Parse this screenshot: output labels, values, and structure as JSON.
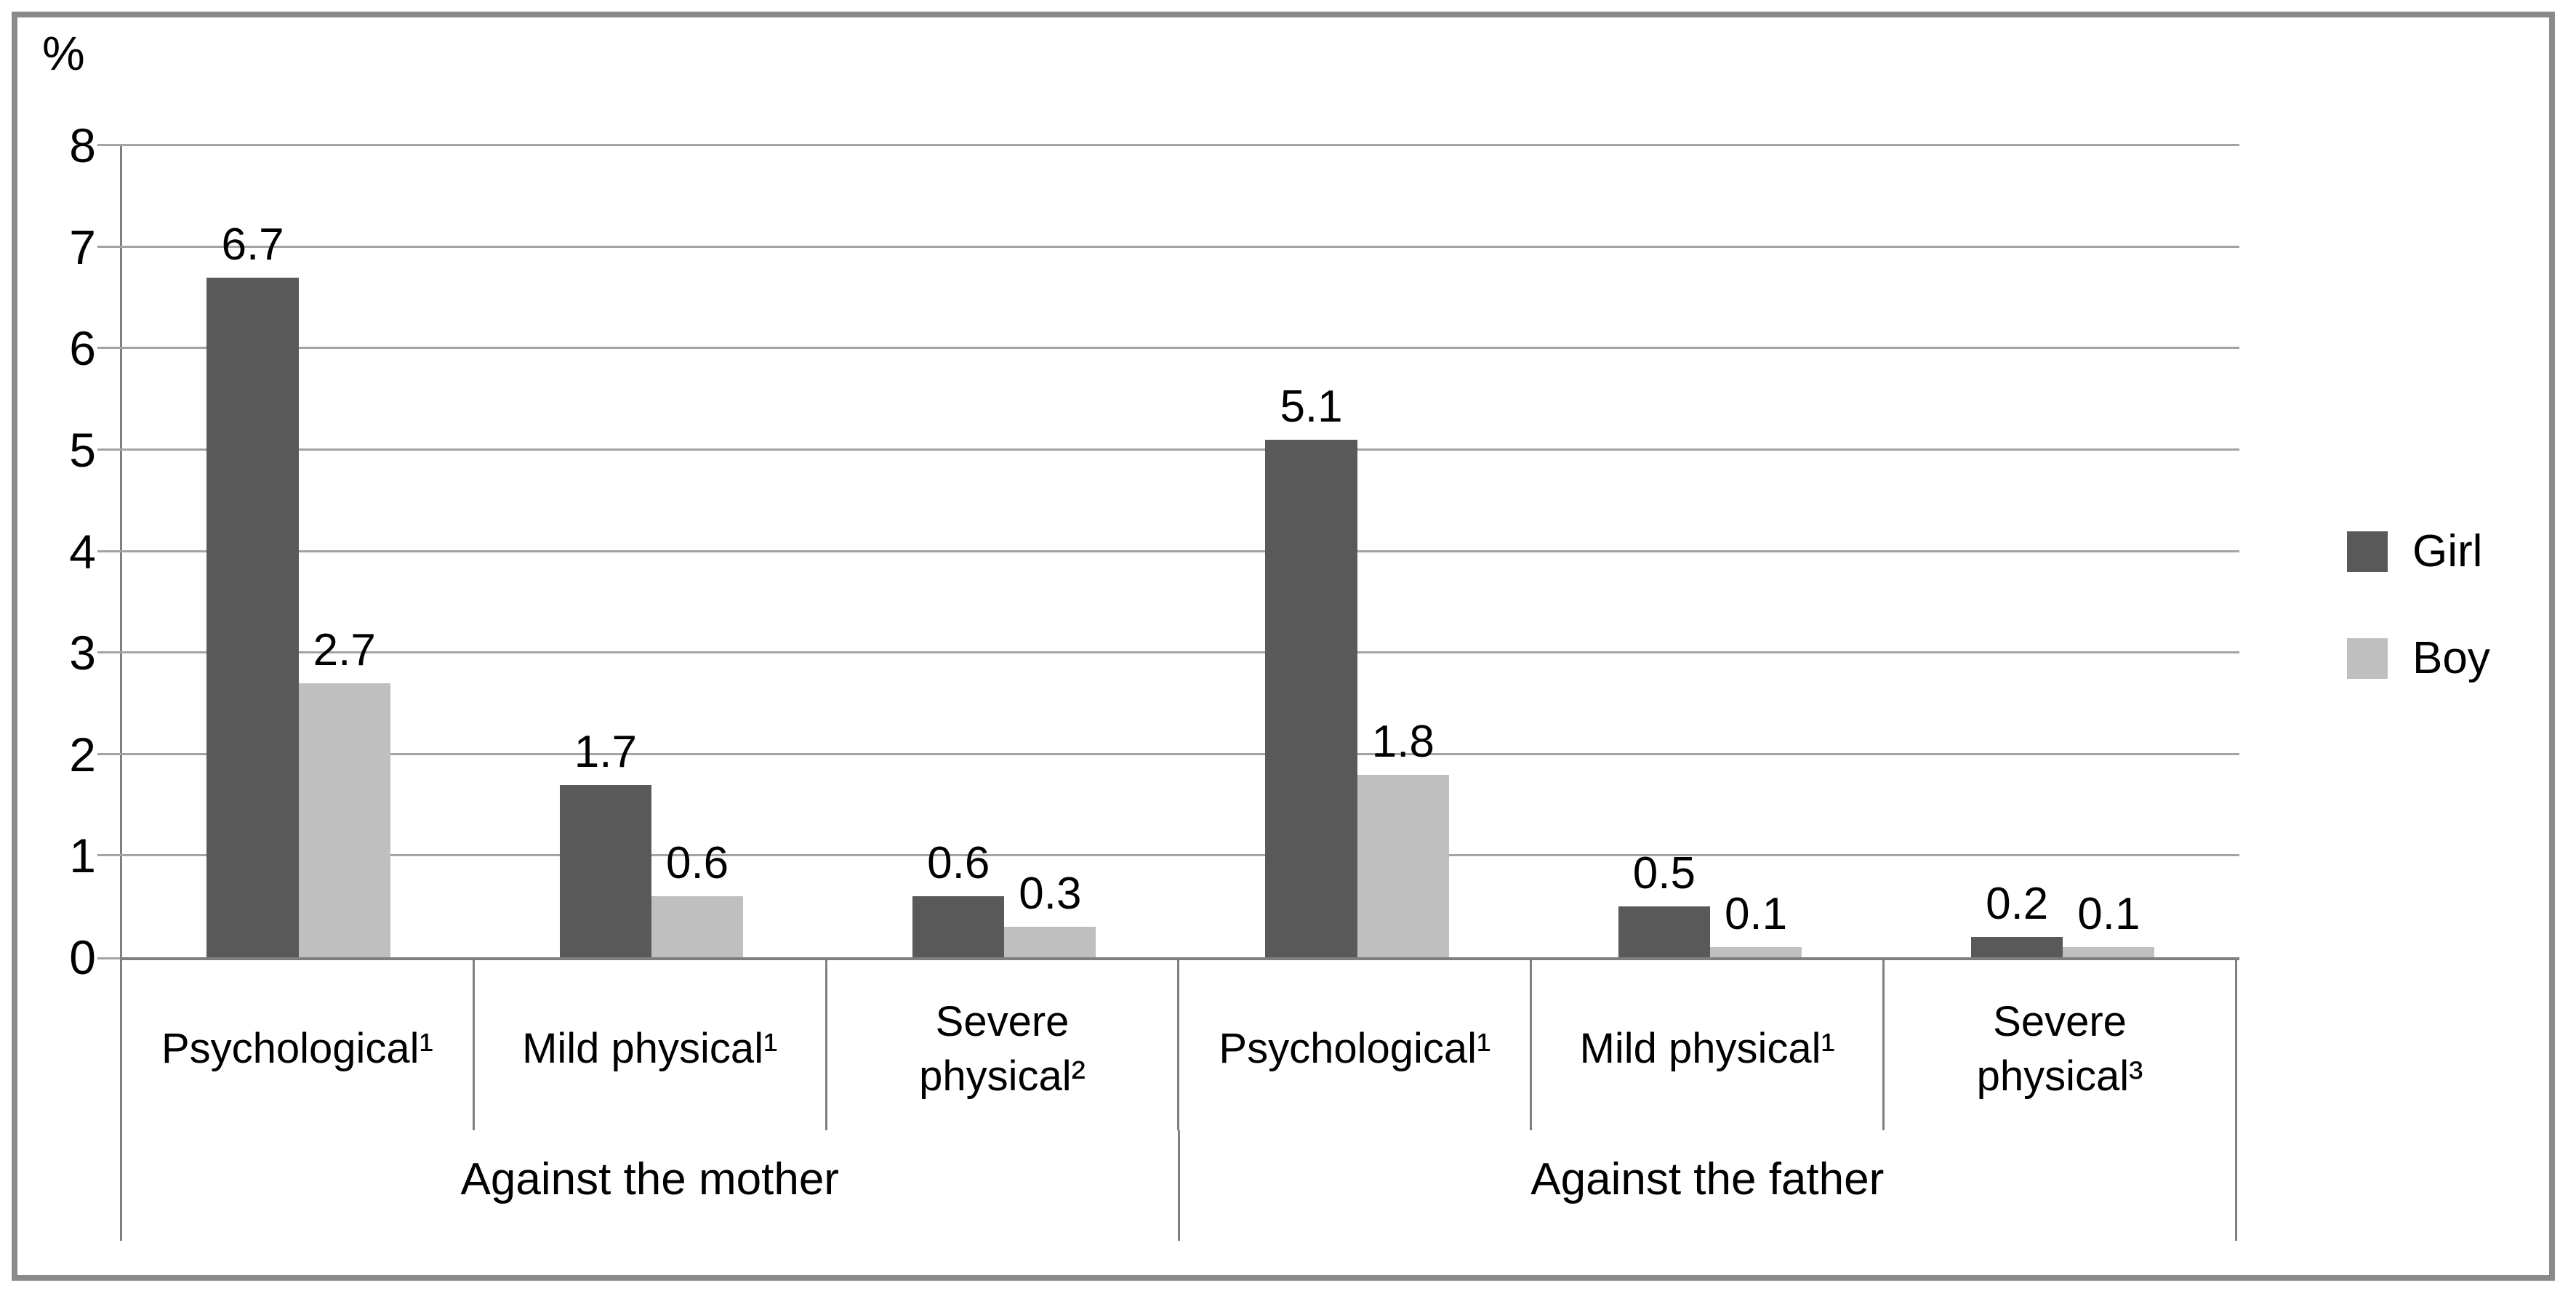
{
  "chart_data": {
    "type": "bar",
    "title": "",
    "ylabel": "%",
    "xlabel": "",
    "ylim": [
      0,
      8
    ],
    "ytick_step": 1,
    "grid": true,
    "legend_position": "right",
    "series": [
      {
        "name": "Girl",
        "color": "#595959"
      },
      {
        "name": "Boy",
        "color": "#bfbfbf"
      }
    ],
    "groups": [
      {
        "label": "Against the mother",
        "categories": [
          {
            "label": "Psychological¹",
            "values": [
              6.7,
              2.7
            ]
          },
          {
            "label": "Mild physical¹",
            "values": [
              1.7,
              0.6
            ]
          },
          {
            "label": "Severe\nphysical²",
            "values": [
              0.6,
              0.3
            ]
          }
        ]
      },
      {
        "label": "Against the father",
        "categories": [
          {
            "label": "Psychological¹",
            "values": [
              5.1,
              1.8
            ]
          },
          {
            "label": "Mild physical¹",
            "values": [
              0.5,
              0.1
            ]
          },
          {
            "label": "Severe\nphysical³",
            "values": [
              0.2,
              0.1
            ]
          }
        ]
      }
    ],
    "colors": {
      "gridline": "#a3a3a3",
      "axis": "#7f7f7f",
      "frame": "#8a8a8a",
      "text": "#000000"
    }
  }
}
